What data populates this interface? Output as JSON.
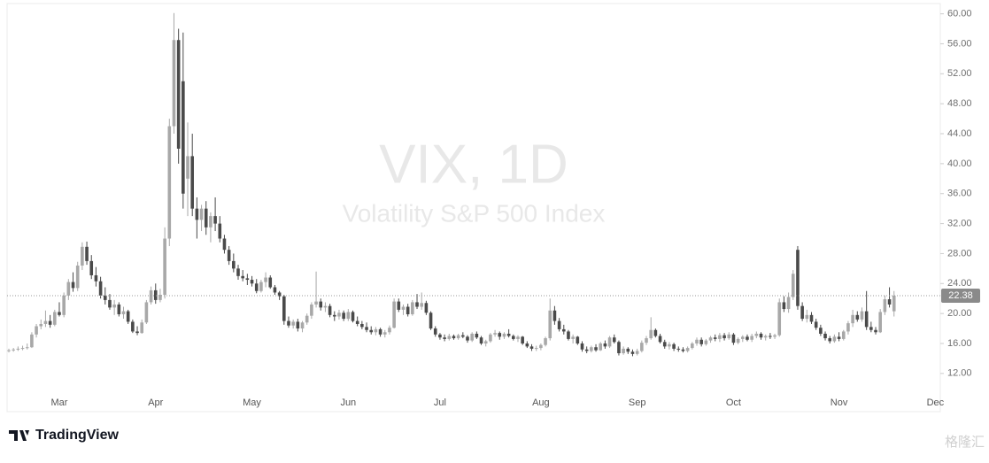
{
  "chart_data": {
    "type": "candlestick",
    "title": "VIX, 1D",
    "subtitle": "Volatility S&P 500 Index",
    "brand": "TradingView",
    "watermark": "格隆汇",
    "up_color": "#a8a8a8",
    "down_color": "#4a4a4a",
    "ylim": [
      6.9,
      60.9
    ],
    "yticks": [
      {
        "value": 12,
        "label": "12.00"
      },
      {
        "value": 16,
        "label": "16.00"
      },
      {
        "value": 20,
        "label": "20.00"
      },
      {
        "value": 24,
        "label": "24.00"
      },
      {
        "value": 28,
        "label": "28.00"
      },
      {
        "value": 32,
        "label": "32.00"
      },
      {
        "value": 36,
        "label": "36.00"
      },
      {
        "value": 40,
        "label": "40.00"
      },
      {
        "value": 44,
        "label": "44.00"
      },
      {
        "value": 48,
        "label": "48.00"
      },
      {
        "value": 52,
        "label": "52.00"
      },
      {
        "value": 56,
        "label": "56.00"
      },
      {
        "value": 60,
        "label": "60.00"
      }
    ],
    "categories": [
      null,
      null,
      null,
      null,
      null,
      null,
      null,
      null,
      null,
      null,
      null,
      "Mar",
      null,
      null,
      null,
      null,
      null,
      null,
      null,
      null,
      null,
      null,
      null,
      null,
      null,
      null,
      null,
      null,
      null,
      null,
      null,
      null,
      "Apr",
      null,
      null,
      null,
      null,
      null,
      null,
      null,
      null,
      null,
      null,
      null,
      null,
      null,
      null,
      null,
      null,
      null,
      null,
      null,
      null,
      "May",
      null,
      null,
      null,
      null,
      null,
      null,
      null,
      null,
      null,
      null,
      null,
      null,
      null,
      null,
      null,
      null,
      null,
      null,
      null,
      null,
      "Jun",
      null,
      null,
      null,
      null,
      null,
      null,
      null,
      null,
      null,
      null,
      null,
      null,
      null,
      null,
      null,
      null,
      null,
      null,
      null,
      "Jul",
      null,
      null,
      null,
      null,
      null,
      null,
      null,
      null,
      null,
      null,
      null,
      null,
      null,
      null,
      null,
      null,
      null,
      null,
      null,
      null,
      null,
      "Aug",
      null,
      null,
      null,
      null,
      null,
      null,
      null,
      null,
      null,
      null,
      null,
      null,
      null,
      null,
      null,
      null,
      null,
      null,
      null,
      null,
      "Sep",
      null,
      null,
      null,
      null,
      null,
      null,
      null,
      null,
      null,
      null,
      null,
      null,
      null,
      null,
      null,
      null,
      null,
      null,
      null,
      null,
      "Oct",
      null,
      null,
      null,
      null,
      null,
      null,
      null,
      null,
      null,
      null,
      null,
      null,
      null,
      null,
      null,
      null,
      null,
      null,
      null,
      null,
      null,
      null,
      "Nov",
      null,
      null,
      null,
      null,
      null,
      null,
      null,
      null,
      null,
      null,
      null,
      null,
      null,
      null,
      null,
      null,
      null,
      null,
      null,
      null,
      "Dec"
    ],
    "candles": [
      [
        15.0,
        15.3,
        14.8,
        15.1
      ],
      [
        15.1,
        15.4,
        14.9,
        15.2
      ],
      [
        15.2,
        15.6,
        15.0,
        15.3
      ],
      [
        15.3,
        15.7,
        15.1,
        15.4
      ],
      [
        15.4,
        16.0,
        15.2,
        15.5
      ],
      [
        15.5,
        17.5,
        15.4,
        17.2
      ],
      [
        17.2,
        18.6,
        16.8,
        18.3
      ],
      [
        18.3,
        19.2,
        17.9,
        18.6
      ],
      [
        18.6,
        20.4,
        18.2,
        19.0
      ],
      [
        19.0,
        19.8,
        18.1,
        18.5
      ],
      [
        18.5,
        20.5,
        18.3,
        20.2
      ],
      [
        20.2,
        21.5,
        19.6,
        19.8
      ],
      [
        19.8,
        22.8,
        19.5,
        22.4
      ],
      [
        22.4,
        24.6,
        21.8,
        24.2
      ],
      [
        24.2,
        25.5,
        22.9,
        23.4
      ],
      [
        23.4,
        26.9,
        23.0,
        26.4
      ],
      [
        26.4,
        29.5,
        25.8,
        28.9
      ],
      [
        28.9,
        29.6,
        26.5,
        27.0
      ],
      [
        27.0,
        27.8,
        24.6,
        25.1
      ],
      [
        25.1,
        26.2,
        23.6,
        24.3
      ],
      [
        24.3,
        24.9,
        22.0,
        22.4
      ],
      [
        22.4,
        23.5,
        21.2,
        21.8
      ],
      [
        21.8,
        22.6,
        20.5,
        20.8
      ],
      [
        20.8,
        21.8,
        19.8,
        21.2
      ],
      [
        21.2,
        21.5,
        19.6,
        19.9
      ],
      [
        19.9,
        20.9,
        19.3,
        20.3
      ],
      [
        20.3,
        20.5,
        18.6,
        18.9
      ],
      [
        18.9,
        19.2,
        17.4,
        17.6
      ],
      [
        17.6,
        18.3,
        17.1,
        17.4
      ],
      [
        17.4,
        19.2,
        17.3,
        18.8
      ],
      [
        18.8,
        21.8,
        18.6,
        21.5
      ],
      [
        21.5,
        23.6,
        21.2,
        23.1
      ],
      [
        23.1,
        24.0,
        21.3,
        21.8
      ],
      [
        21.8,
        23.3,
        21.5,
        22.5
      ],
      [
        22.5,
        31.5,
        22.0,
        30.0
      ],
      [
        30.0,
        46.0,
        29.0,
        45.0
      ],
      [
        45.0,
        60.1,
        44.0,
        56.5
      ],
      [
        56.5,
        58.0,
        40.0,
        42.0
      ],
      [
        51.0,
        57.5,
        34.0,
        36.0
      ],
      [
        38.0,
        45.5,
        33.0,
        41.0
      ],
      [
        41.0,
        44.0,
        33.0,
        34.0
      ],
      [
        34.0,
        35.5,
        30.0,
        32.5
      ],
      [
        32.5,
        34.5,
        31.0,
        34.0
      ],
      [
        34.0,
        35.0,
        30.5,
        31.5
      ],
      [
        31.5,
        33.5,
        29.5,
        33.0
      ],
      [
        33.0,
        35.5,
        31.0,
        32.0
      ],
      [
        32.0,
        33.0,
        29.5,
        30.0
      ],
      [
        30.0,
        30.5,
        28.0,
        28.5
      ],
      [
        28.5,
        29.0,
        26.5,
        27.0
      ],
      [
        27.0,
        28.0,
        25.5,
        26.0
      ],
      [
        26.0,
        26.5,
        24.5,
        25.0
      ],
      [
        25.0,
        25.8,
        24.3,
        24.7
      ],
      [
        24.7,
        25.3,
        23.8,
        24.5
      ],
      [
        24.5,
        25.0,
        23.6,
        24.0
      ],
      [
        24.0,
        24.6,
        22.7,
        23.0
      ],
      [
        23.0,
        24.5,
        22.8,
        24.2
      ],
      [
        24.2,
        25.5,
        23.5,
        24.8
      ],
      [
        24.8,
        25.1,
        23.3,
        23.5
      ],
      [
        23.5,
        23.8,
        22.5,
        22.8
      ],
      [
        22.8,
        23.0,
        21.8,
        22.3
      ],
      [
        22.3,
        22.5,
        18.5,
        19.0
      ],
      [
        19.0,
        19.6,
        18.1,
        18.4
      ],
      [
        18.4,
        19.2,
        18.0,
        18.9
      ],
      [
        18.9,
        19.3,
        17.6,
        18.0
      ],
      [
        18.0,
        19.0,
        17.5,
        18.8
      ],
      [
        18.8,
        20.0,
        18.5,
        19.7
      ],
      [
        19.7,
        21.5,
        19.3,
        21.2
      ],
      [
        21.2,
        25.6,
        20.8,
        21.6
      ],
      [
        21.6,
        22.0,
        20.4,
        20.8
      ],
      [
        20.8,
        21.5,
        20.2,
        21.0
      ],
      [
        21.0,
        21.3,
        19.5,
        19.8
      ],
      [
        19.8,
        20.3,
        19.0,
        19.6
      ],
      [
        19.6,
        20.5,
        19.2,
        20.1
      ],
      [
        20.1,
        20.4,
        19.0,
        19.3
      ],
      [
        19.3,
        20.6,
        19.0,
        20.2
      ],
      [
        20.2,
        20.4,
        18.8,
        19.0
      ],
      [
        19.0,
        19.6,
        18.3,
        18.6
      ],
      [
        18.6,
        19.0,
        17.9,
        18.2
      ],
      [
        18.2,
        18.8,
        17.5,
        17.8
      ],
      [
        17.8,
        18.3,
        17.2,
        17.5
      ],
      [
        17.5,
        18.2,
        17.1,
        17.9
      ],
      [
        17.9,
        18.1,
        16.9,
        17.2
      ],
      [
        17.2,
        17.8,
        16.8,
        17.5
      ],
      [
        17.5,
        18.4,
        17.2,
        18.1
      ],
      [
        18.1,
        22.0,
        18.0,
        21.6
      ],
      [
        21.6,
        22.0,
        20.2,
        20.5
      ],
      [
        20.5,
        21.2,
        19.8,
        20.9
      ],
      [
        20.9,
        21.3,
        19.6,
        19.9
      ],
      [
        19.9,
        21.8,
        19.7,
        21.5
      ],
      [
        21.5,
        22.6,
        20.6,
        20.9
      ],
      [
        20.9,
        22.8,
        20.5,
        21.4
      ],
      [
        21.4,
        21.7,
        19.8,
        20.1
      ],
      [
        20.1,
        20.3,
        17.8,
        18.0
      ],
      [
        18.0,
        18.3,
        16.9,
        17.2
      ],
      [
        17.2,
        17.4,
        16.5,
        16.8
      ],
      [
        16.8,
        17.2,
        16.3,
        16.6
      ],
      [
        16.6,
        17.3,
        16.4,
        17.0
      ],
      [
        17.0,
        17.2,
        16.5,
        16.7
      ],
      [
        16.7,
        17.3,
        16.5,
        17.1
      ],
      [
        17.1,
        17.5,
        16.7,
        16.9
      ],
      [
        16.9,
        17.1,
        16.1,
        16.4
      ],
      [
        16.4,
        17.5,
        16.2,
        17.3
      ],
      [
        17.3,
        17.6,
        16.6,
        16.8
      ],
      [
        16.8,
        17.0,
        15.8,
        16.0
      ],
      [
        16.0,
        16.5,
        15.6,
        16.3
      ],
      [
        16.3,
        17.4,
        16.1,
        17.2
      ],
      [
        17.2,
        17.8,
        16.9,
        17.4
      ],
      [
        17.4,
        17.6,
        16.5,
        16.9
      ],
      [
        16.9,
        17.5,
        16.6,
        17.3
      ],
      [
        17.3,
        17.9,
        16.8,
        17.0
      ],
      [
        17.0,
        17.2,
        16.4,
        16.6
      ],
      [
        16.6,
        17.1,
        16.2,
        16.9
      ],
      [
        16.9,
        17.0,
        15.8,
        16.0
      ],
      [
        16.0,
        16.3,
        15.4,
        15.6
      ],
      [
        15.6,
        15.9,
        15.0,
        15.3
      ],
      [
        15.3,
        15.7,
        15.0,
        15.4
      ],
      [
        15.4,
        16.0,
        15.1,
        15.8
      ],
      [
        15.8,
        16.9,
        15.6,
        16.7
      ],
      [
        16.7,
        22.0,
        16.4,
        20.4
      ],
      [
        20.4,
        21.0,
        18.5,
        19.0
      ],
      [
        19.0,
        19.4,
        17.6,
        17.9
      ],
      [
        17.9,
        18.5,
        17.2,
        17.6
      ],
      [
        17.6,
        17.8,
        16.4,
        16.6
      ],
      [
        16.6,
        17.2,
        16.0,
        16.9
      ],
      [
        16.9,
        17.0,
        15.8,
        16.0
      ],
      [
        16.0,
        16.3,
        14.9,
        15.2
      ],
      [
        15.2,
        15.6,
        14.7,
        15.0
      ],
      [
        15.0,
        15.7,
        14.8,
        15.5
      ],
      [
        15.5,
        15.9,
        14.9,
        15.1
      ],
      [
        15.1,
        16.2,
        15.0,
        16.0
      ],
      [
        16.0,
        16.4,
        15.3,
        15.6
      ],
      [
        15.6,
        17.0,
        15.4,
        16.8
      ],
      [
        16.8,
        17.2,
        16.0,
        16.2
      ],
      [
        16.2,
        16.4,
        14.4,
        14.7
      ],
      [
        14.7,
        15.6,
        14.5,
        15.3
      ],
      [
        15.3,
        15.5,
        14.6,
        14.9
      ],
      [
        14.9,
        15.2,
        14.3,
        14.6
      ],
      [
        14.6,
        15.3,
        14.4,
        15.0
      ],
      [
        15.0,
        16.4,
        14.8,
        16.1
      ],
      [
        16.1,
        17.0,
        15.8,
        16.7
      ],
      [
        16.7,
        19.5,
        16.5,
        17.8
      ],
      [
        17.8,
        18.0,
        16.8,
        17.0
      ],
      [
        17.0,
        17.3,
        16.0,
        16.2
      ],
      [
        16.2,
        16.5,
        15.3,
        15.6
      ],
      [
        15.6,
        16.2,
        15.2,
        15.9
      ],
      [
        15.9,
        16.1,
        15.0,
        15.3
      ],
      [
        15.3,
        15.6,
        14.9,
        15.2
      ],
      [
        15.2,
        15.5,
        14.8,
        15.0
      ],
      [
        15.0,
        15.6,
        14.8,
        15.4
      ],
      [
        15.4,
        16.2,
        15.2,
        16.0
      ],
      [
        16.0,
        16.8,
        15.7,
        16.5
      ],
      [
        16.5,
        16.8,
        15.6,
        15.9
      ],
      [
        15.9,
        16.6,
        15.7,
        16.4
      ],
      [
        16.4,
        17.0,
        16.1,
        16.8
      ],
      [
        16.8,
        17.2,
        16.3,
        16.6
      ],
      [
        16.6,
        17.4,
        16.2,
        17.1
      ],
      [
        17.1,
        17.4,
        16.4,
        16.7
      ],
      [
        16.7,
        17.5,
        16.5,
        17.2
      ],
      [
        17.2,
        17.4,
        15.8,
        16.1
      ],
      [
        16.1,
        16.8,
        15.9,
        16.6
      ],
      [
        16.6,
        17.1,
        16.2,
        16.9
      ],
      [
        16.9,
        17.2,
        16.3,
        16.5
      ],
      [
        16.5,
        17.3,
        16.2,
        17.0
      ],
      [
        17.0,
        17.6,
        16.7,
        17.3
      ],
      [
        17.3,
        17.5,
        16.5,
        16.8
      ],
      [
        16.8,
        17.2,
        16.4,
        17.0
      ],
      [
        17.0,
        17.4,
        16.6,
        16.9
      ],
      [
        16.9,
        17.3,
        16.6,
        17.1
      ],
      [
        17.1,
        22.0,
        16.9,
        21.5
      ],
      [
        21.5,
        22.3,
        20.2,
        20.6
      ],
      [
        20.6,
        22.8,
        20.1,
        22.2
      ],
      [
        22.2,
        25.8,
        21.8,
        25.3
      ],
      [
        28.5,
        29.0,
        20.5,
        21.0
      ],
      [
        21.0,
        21.5,
        19.0,
        19.3
      ],
      [
        19.3,
        20.5,
        18.8,
        19.8
      ],
      [
        19.8,
        20.2,
        18.6,
        18.9
      ],
      [
        18.9,
        19.3,
        17.8,
        18.1
      ],
      [
        18.1,
        18.5,
        17.0,
        17.3
      ],
      [
        17.3,
        17.6,
        16.4,
        16.7
      ],
      [
        16.7,
        17.0,
        16.0,
        16.3
      ],
      [
        16.3,
        17.2,
        16.1,
        16.9
      ],
      [
        16.9,
        17.5,
        16.3,
        16.6
      ],
      [
        16.6,
        17.8,
        16.4,
        17.6
      ],
      [
        17.6,
        19.0,
        17.2,
        18.7
      ],
      [
        18.7,
        20.5,
        18.2,
        19.8
      ],
      [
        19.8,
        20.3,
        18.9,
        19.2
      ],
      [
        19.2,
        20.8,
        18.9,
        20.3
      ],
      [
        20.3,
        23.0,
        17.8,
        18.2
      ],
      [
        18.2,
        18.9,
        17.5,
        17.8
      ],
      [
        17.8,
        18.2,
        17.2,
        17.5
      ],
      [
        17.5,
        20.6,
        17.4,
        20.2
      ],
      [
        20.2,
        22.4,
        19.8,
        21.9
      ],
      [
        21.9,
        23.5,
        20.8,
        21.2
      ],
      [
        20.3,
        23.0,
        19.6,
        22.38
      ],
      null,
      null,
      null,
      null,
      null,
      null,
      null,
      null,
      null
    ]
  }
}
